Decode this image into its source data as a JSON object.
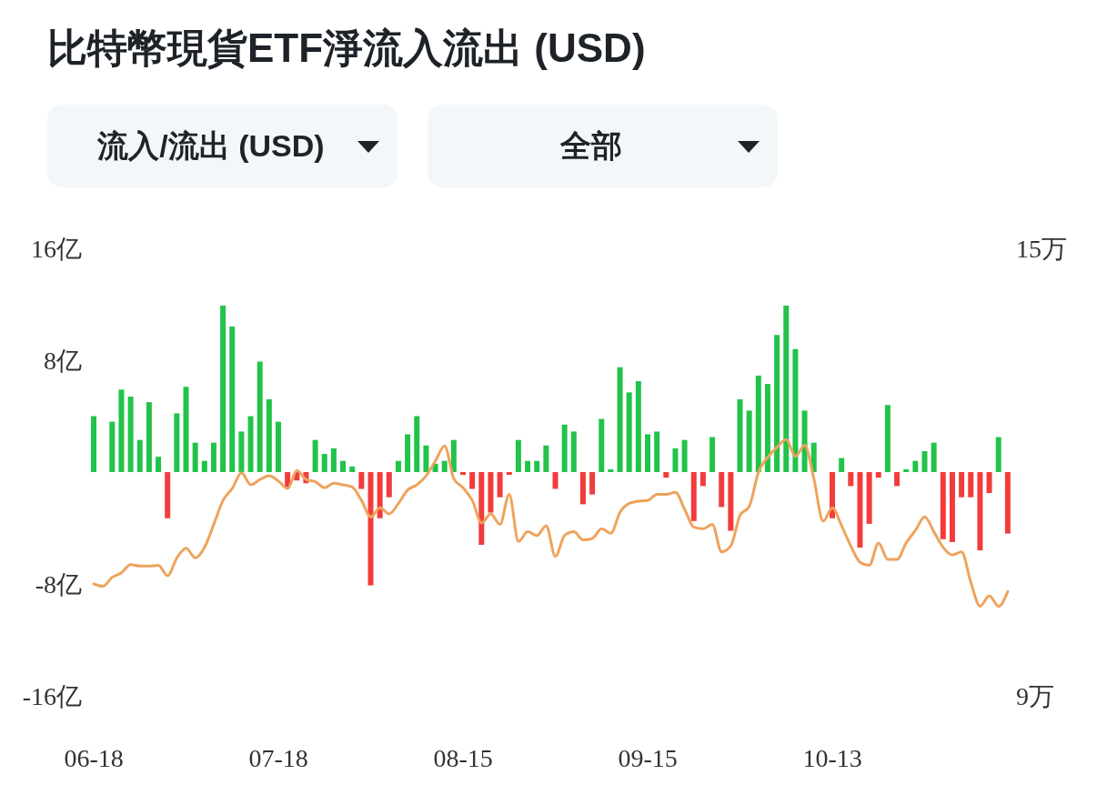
{
  "chart_data": {
    "type": "bar",
    "title": "比特幣現貨ETF淨流入流出 (USD)",
    "annotations": [
      "流入/流出 (USD)",
      "全部"
    ],
    "categories": [
      "06-18",
      null,
      null,
      null,
      null,
      null,
      null,
      null,
      null,
      null,
      null,
      null,
      null,
      null,
      null,
      null,
      null,
      null,
      null,
      null,
      "07-18",
      null,
      null,
      null,
      null,
      null,
      null,
      null,
      null,
      null,
      null,
      null,
      null,
      null,
      null,
      null,
      null,
      null,
      null,
      null,
      "08-15",
      null,
      null,
      null,
      null,
      null,
      null,
      null,
      null,
      null,
      null,
      null,
      null,
      null,
      null,
      null,
      null,
      null,
      null,
      null,
      "09-15",
      null,
      null,
      null,
      null,
      null,
      null,
      null,
      null,
      null,
      null,
      null,
      null,
      null,
      null,
      null,
      null,
      null,
      null,
      null,
      "10-13",
      null,
      null,
      null,
      null,
      null,
      null,
      null,
      null,
      null,
      null,
      null,
      null,
      null,
      null,
      null,
      null,
      null,
      null,
      null
    ],
    "series": [
      {
        "values": [
          4.0,
          0,
          3.6,
          5.9,
          5.4,
          2.3,
          5.0,
          1.1,
          -3.3,
          4.2,
          6.1,
          2.1,
          0.8,
          2.1,
          11.9,
          10.4,
          2.9,
          4.0,
          7.9,
          5.2,
          3.6,
          -1.1,
          -0.6,
          -0.8,
          2.3,
          1.3,
          1.7,
          0.8,
          0.4,
          -1.2,
          -8.1,
          -3.3,
          -1.8,
          0.8,
          2.7,
          4.0,
          1.9,
          0.6,
          0.8,
          2.3,
          -0.2,
          -1.2,
          -5.2,
          -2.9,
          -1.8,
          -0.2,
          2.3,
          0.8,
          0.8,
          1.9,
          -1.2,
          3.4,
          2.9,
          -2.3,
          -1.6,
          3.8,
          0.2,
          7.5,
          5.7,
          6.5,
          2.7,
          2.9,
          -0.4,
          1.7,
          2.3,
          -3.5,
          -1.0,
          2.5,
          -2.5,
          -4.2,
          5.2,
          4.4,
          6.9,
          6.3,
          9.8,
          11.9,
          8.8,
          4.4,
          2.1,
          0,
          -3.3,
          1.0,
          -1.0,
          -5.4,
          -3.7,
          -0.4,
          4.8,
          -1.0,
          0.2,
          0.8,
          1.5,
          2.1,
          -4.8,
          -5.0,
          -1.8,
          -1.8,
          -5.6,
          -1.5,
          2.5,
          -4.4
        ],
        "colors": [
          "#22c34a",
          "#22c34a",
          "#22c34a",
          "#22c34a",
          "#22c34a",
          "#22c34a",
          "#22c34a",
          "#22c34a",
          "#f23c3c",
          "#22c34a",
          "#22c34a",
          "#22c34a",
          "#22c34a",
          "#22c34a",
          "#22c34a",
          "#22c34a",
          "#22c34a",
          "#22c34a",
          "#22c34a",
          "#22c34a",
          "#22c34a",
          "#f23c3c",
          "#f23c3c",
          "#f23c3c",
          "#22c34a",
          "#22c34a",
          "#22c34a",
          "#22c34a",
          "#22c34a",
          "#f23c3c",
          "#f23c3c",
          "#f23c3c",
          "#f23c3c",
          "#22c34a",
          "#22c34a",
          "#22c34a",
          "#22c34a",
          "#22c34a",
          "#22c34a",
          "#22c34a",
          "#f23c3c",
          "#f23c3c",
          "#f23c3c",
          "#f23c3c",
          "#f23c3c",
          "#f23c3c",
          "#22c34a",
          "#22c34a",
          "#22c34a",
          "#22c34a",
          "#f23c3c",
          "#22c34a",
          "#22c34a",
          "#f23c3c",
          "#f23c3c",
          "#22c34a",
          "#22c34a",
          "#22c34a",
          "#22c34a",
          "#22c34a",
          "#22c34a",
          "#22c34a",
          "#f23c3c",
          "#22c34a",
          "#22c34a",
          "#f23c3c",
          "#f23c3c",
          "#22c34a",
          "#f23c3c",
          "#f23c3c",
          "#22c34a",
          "#22c34a",
          "#22c34a",
          "#22c34a",
          "#22c34a",
          "#22c34a",
          "#22c34a",
          "#22c34a",
          "#22c34a",
          "#22c34a",
          "#f23c3c",
          "#22c34a",
          "#f23c3c",
          "#f23c3c",
          "#f23c3c",
          "#f23c3c",
          "#22c34a",
          "#f23c3c",
          "#22c34a",
          "#22c34a",
          "#22c34a",
          "#22c34a",
          "#f23c3c",
          "#f23c3c",
          "#f23c3c",
          "#f23c3c",
          "#f23c3c",
          "#f23c3c",
          "#22c34a",
          "#f23c3c"
        ]
      },
      {
        "type": "line",
        "axis": "y2",
        "color": "#eea35c",
        "values": [
          10.5,
          10.47,
          10.59,
          10.65,
          10.76,
          10.74,
          10.74,
          10.75,
          10.61,
          10.85,
          10.98,
          10.85,
          10.99,
          11.3,
          11.62,
          11.78,
          11.99,
          11.83,
          11.9,
          11.95,
          11.88,
          11.78,
          12.02,
          11.9,
          11.87,
          11.79,
          11.85,
          11.83,
          11.8,
          11.62,
          11.4,
          11.52,
          11.44,
          11.58,
          11.76,
          11.83,
          11.95,
          12.15,
          12.35,
          11.91,
          11.79,
          11.62,
          11.32,
          11.44,
          11.3,
          11.7,
          11.07,
          11.2,
          11.15,
          11.28,
          10.87,
          11.15,
          11.2,
          11.09,
          11.11,
          11.24,
          11.18,
          11.46,
          11.58,
          11.61,
          11.62,
          11.7,
          11.7,
          11.73,
          11.5,
          11.26,
          11.24,
          11.3,
          10.93,
          11.01,
          11.42,
          11.54,
          12.0,
          12.2,
          12.33,
          12.44,
          12.21,
          12.36,
          11.91,
          11.34,
          11.52,
          11.28,
          11.01,
          10.79,
          10.75,
          11.05,
          10.83,
          10.83,
          11.05,
          11.22,
          11.4,
          11.2,
          10.99,
          10.89,
          10.93,
          10.52,
          10.2,
          10.34,
          10.2,
          10.4
        ]
      }
    ],
    "ylim": [
      -16,
      16
    ],
    "yticks": [
      {
        "value": 16,
        "label": "16亿"
      },
      {
        "value": 8,
        "label": "8亿"
      },
      {
        "value": -8,
        "label": "-8亿"
      },
      {
        "value": -16,
        "label": "-16亿"
      }
    ],
    "y2lim": [
      9,
      15
    ],
    "y2ticks": [
      {
        "value": 15,
        "label": "15万"
      },
      {
        "value": 9,
        "label": "9万"
      }
    ]
  }
}
